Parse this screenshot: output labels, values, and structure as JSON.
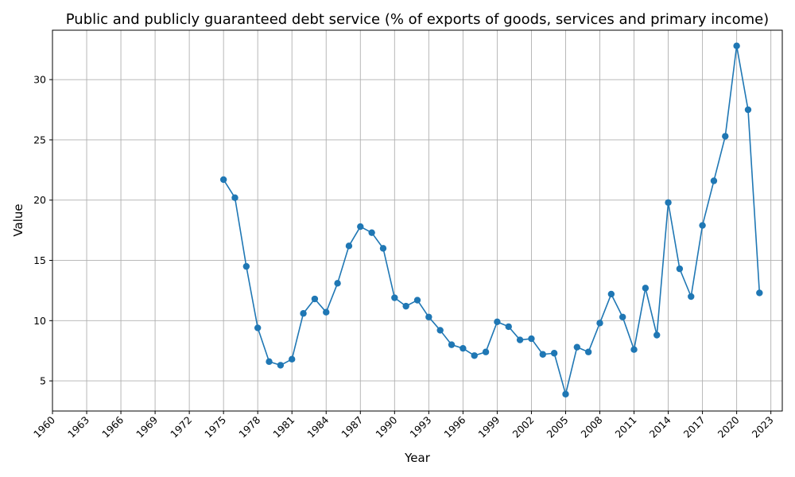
{
  "colors": {
    "series": "#1f77b4",
    "grid": "#b0b0b0",
    "axis": "#000000",
    "background": "#ffffff"
  },
  "chart_data": {
    "type": "line",
    "title": "Public and publicly guaranteed debt service (% of exports of goods, services and primary income)",
    "xlabel": "Year",
    "ylabel": "Value",
    "grid": true,
    "xlim": [
      1960,
      2024
    ],
    "ylim": [
      2.5,
      34.1
    ],
    "x_ticks": [
      1960,
      1963,
      1966,
      1969,
      1972,
      1975,
      1978,
      1981,
      1984,
      1987,
      1990,
      1993,
      1996,
      1999,
      2002,
      2005,
      2008,
      2011,
      2014,
      2017,
      2020,
      2023
    ],
    "y_ticks": [
      5,
      10,
      15,
      20,
      25,
      30
    ],
    "series": [
      {
        "marker": "circle",
        "x": [
          1975,
          1976,
          1977,
          1978,
          1979,
          1980,
          1981,
          1982,
          1983,
          1984,
          1985,
          1986,
          1987,
          1988,
          1989,
          1990,
          1991,
          1992,
          1993,
          1994,
          1995,
          1996,
          1997,
          1998,
          1999,
          2000,
          2001,
          2002,
          2003,
          2004,
          2005,
          2006,
          2007,
          2008,
          2009,
          2010,
          2011,
          2012,
          2013,
          2014,
          2015,
          2016,
          2017,
          2018,
          2019,
          2020,
          2021,
          2022
        ],
        "y": [
          21.7,
          20.2,
          14.5,
          9.4,
          6.6,
          6.3,
          6.8,
          10.6,
          11.8,
          10.7,
          13.1,
          16.2,
          17.8,
          17.3,
          16.0,
          11.9,
          11.2,
          11.7,
          10.3,
          9.2,
          8.0,
          7.7,
          7.1,
          7.4,
          9.9,
          9.5,
          8.4,
          8.5,
          7.2,
          7.3,
          3.9,
          7.8,
          7.4,
          9.8,
          12.2,
          10.3,
          7.6,
          12.7,
          8.8,
          19.8,
          14.3,
          12.0,
          17.9,
          21.6,
          25.3,
          32.8,
          27.5,
          12.3
        ]
      }
    ]
  }
}
